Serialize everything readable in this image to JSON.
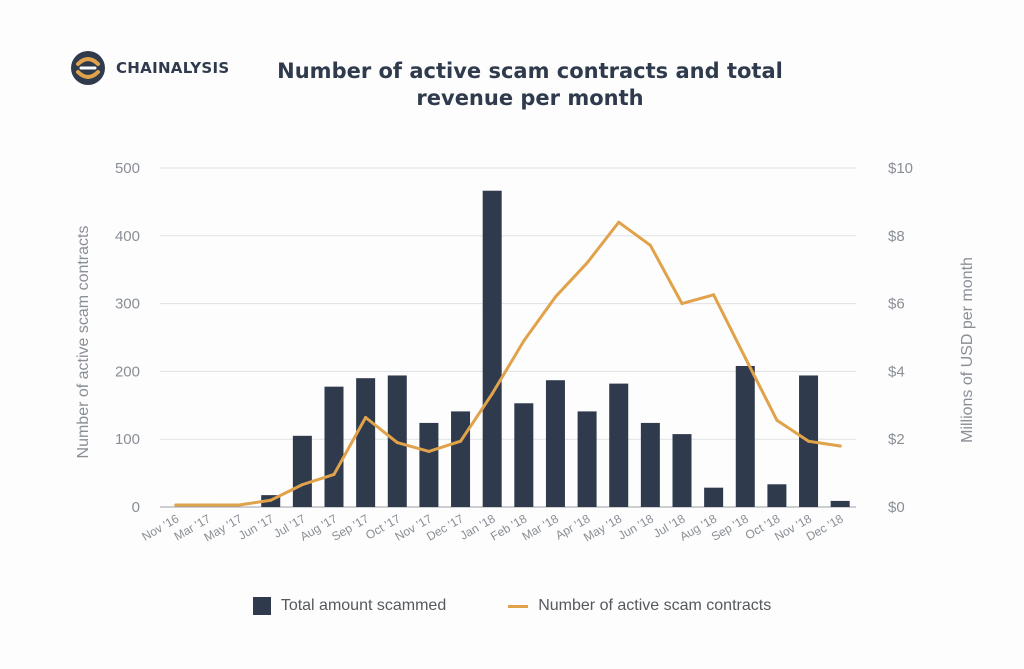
{
  "brand": {
    "name": "CHAINALYSIS",
    "accent": "#e0a24a",
    "dark": "#2f3b4d"
  },
  "chart_data": {
    "type": "bar",
    "title_line1": "Number of active scam contracts and total",
    "title_line2": "revenue per month",
    "ylabel_left": "Number of active scam contracts",
    "ylabel_right": "Millions of USD per month",
    "ylim_left": [
      0,
      500
    ],
    "ylim_right": [
      0,
      10
    ],
    "yticks_left": [
      "0",
      "100",
      "200",
      "300",
      "400",
      "500"
    ],
    "yticks_right": [
      "$0",
      "$2",
      "$4",
      "$6",
      "$8",
      "$10"
    ],
    "grid": true,
    "legend_position": "bottom",
    "categories": [
      "Nov '16",
      "Mar '17",
      "May '17",
      "Jun '17",
      "Jul '17",
      "Aug '17",
      "Sep '17",
      "Oct '17",
      "Nov '17",
      "Dec '17",
      "Jan '18",
      "Feb '18",
      "Mar '18",
      "Apr '18",
      "May '18",
      "Jun '18",
      "Jul '18",
      "Aug '18",
      "Sep '18",
      "Oct '18",
      "Nov '18",
      "Dec '18"
    ],
    "series": [
      {
        "name": "Total amount scammed",
        "type": "bar",
        "axis": "right",
        "color": "#2f3b4d",
        "values": [
          0,
          0,
          0,
          0.35,
          2.1,
          3.55,
          3.8,
          3.88,
          2.48,
          2.82,
          9.33,
          3.06,
          3.74,
          2.82,
          3.64,
          2.48,
          2.15,
          0.57,
          4.16,
          0.67,
          3.88,
          0.18
        ]
      },
      {
        "name": "Number of active scam contracts",
        "type": "line",
        "axis": "left",
        "color": "#e0a24a",
        "values": [
          3,
          3,
          3,
          10,
          33,
          48,
          132,
          95,
          82,
          97,
          167,
          245,
          310,
          360,
          420,
          386,
          300,
          313,
          220,
          128,
          97,
          90
        ]
      }
    ]
  }
}
